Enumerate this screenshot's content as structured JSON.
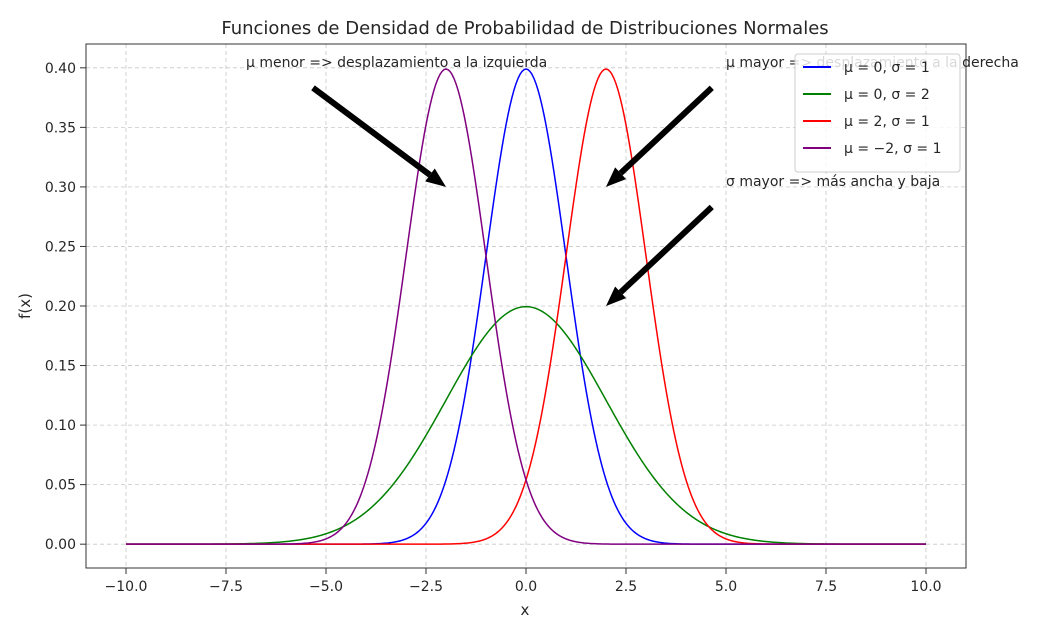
{
  "chart_data": {
    "type": "line",
    "title": "Funciones de Densidad de Probabilidad de Distribuciones Normales",
    "xlabel": "x",
    "ylabel": "f(x)",
    "xlim": [
      -11,
      11
    ],
    "ylim": [
      -0.02,
      0.42
    ],
    "xticks": [
      -10,
      -7.5,
      -5,
      -2.5,
      0,
      2.5,
      5,
      7.5,
      10
    ],
    "xtick_labels": [
      "−10.0",
      "−7.5",
      "−5.0",
      "−2.5",
      "0.0",
      "2.5",
      "5.0",
      "7.5",
      "10.0"
    ],
    "yticks": [
      0,
      0.05,
      0.1,
      0.15,
      0.2,
      0.25,
      0.3,
      0.35,
      0.4
    ],
    "ytick_labels": [
      "0.00",
      "0.05",
      "0.10",
      "0.15",
      "0.20",
      "0.25",
      "0.30",
      "0.35",
      "0.40"
    ],
    "grid": true,
    "x_range": [
      -10,
      10
    ],
    "series": [
      {
        "name": "μ = 0, σ = 1",
        "mu": 0,
        "sigma": 1,
        "color": "#0000ff"
      },
      {
        "name": "μ = 0, σ = 2",
        "mu": 0,
        "sigma": 2,
        "color": "#008000"
      },
      {
        "name": "μ = 2, σ = 1",
        "mu": 2,
        "sigma": 1,
        "color": "#ff0000"
      },
      {
        "name": "μ = −2, σ = 1",
        "mu": -2,
        "sigma": 1,
        "color": "#800080"
      }
    ],
    "legend": {
      "position": "top-right",
      "entries": [
        "μ = 0, σ = 1",
        "μ = 0, σ = 2",
        "μ = 2, σ = 1",
        "μ = −2, σ = 1"
      ]
    },
    "annotations": [
      {
        "text": "μ menor => desplazamiento a la izquierda",
        "xy": [
          -2,
          0.3
        ],
        "xytext": [
          -7,
          0.4
        ]
      },
      {
        "text": "μ mayor => desplazamiento a la derecha",
        "xy": [
          2,
          0.3
        ],
        "xytext": [
          5,
          0.4
        ]
      },
      {
        "text": "σ mayor => más ancha y baja",
        "xy": [
          2,
          0.2
        ],
        "xytext": [
          5,
          0.3
        ]
      }
    ]
  }
}
